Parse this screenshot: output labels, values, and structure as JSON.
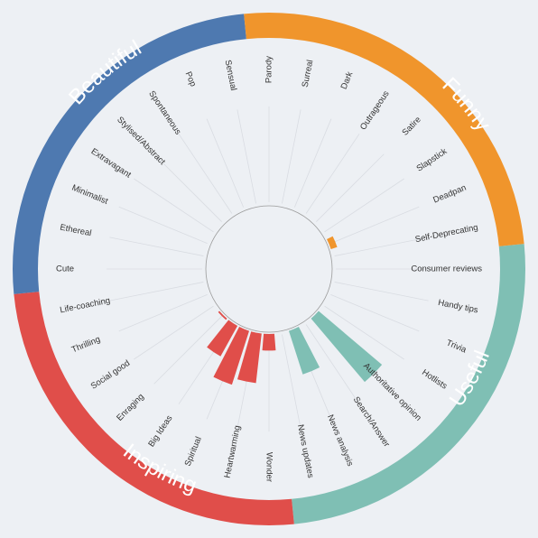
{
  "chart_data": {
    "type": "radial-bar",
    "title": "",
    "groups": [
      {
        "name": "Useful",
        "color": "#7fbfb4",
        "categories": [
          "Consumer reviews",
          "Handy tips",
          "Trivia",
          "Hotlists",
          "Authoritative opinion",
          "Search/Answer",
          "News analysis",
          "News updates"
        ],
        "values": [
          0,
          0,
          0,
          0,
          1.0,
          0,
          0.55,
          0
        ]
      },
      {
        "name": "Inspiring",
        "color": "#e04e4a",
        "categories": [
          "Wonder",
          "Heartwarming",
          "Spiritual",
          "Big Ideas",
          "Enraging",
          "Social good",
          "Thrilling",
          "Life-coaching"
        ],
        "values": [
          0.2,
          0.6,
          0.68,
          0.42,
          0.02,
          0,
          0,
          0
        ]
      },
      {
        "name": "Beautiful",
        "color": "#4e79b0",
        "categories": [
          "Cute",
          "Ethereal",
          "Minimalist",
          "Extravagant",
          "Stylised/Abstract",
          "Spontaneous",
          "Pop",
          "Sensual"
        ],
        "values": [
          0,
          0,
          0,
          0,
          0,
          0,
          0,
          0
        ]
      },
      {
        "name": "Funny",
        "color": "#f0952c",
        "categories": [
          "Parody",
          "Surreal",
          "Dark",
          "Outrageous",
          "Satire",
          "Slapstick",
          "Deadpan",
          "Self-Deprecating"
        ],
        "values": [
          0,
          0,
          0,
          0,
          0,
          0,
          0.08,
          0
        ]
      }
    ]
  }
}
